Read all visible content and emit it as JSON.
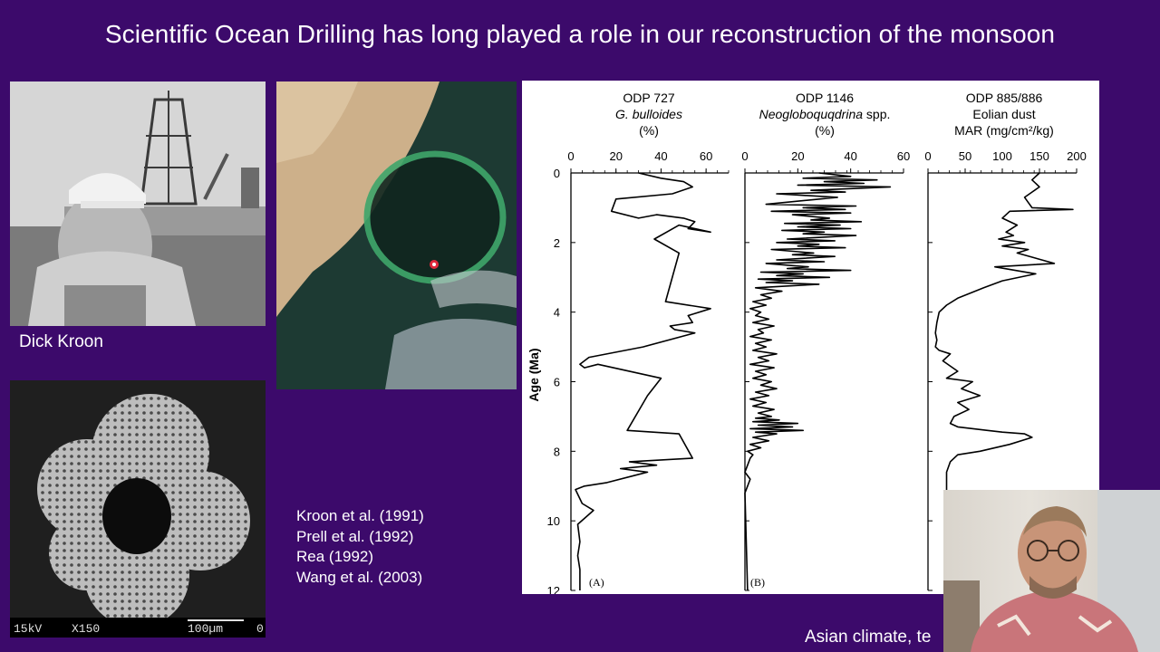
{
  "slide": {
    "title": "Scientific Ocean Drilling has long played a role in our reconstruction of the monsoon",
    "photo_caption": "Dick Kroon",
    "references": [
      "Kroon et al. (1991)",
      "Prell et al. (1992)",
      "Rea (1992)",
      "Wang et al. (2003)"
    ],
    "footer": "Asian climate, te",
    "sem_labels": {
      "voltage": "15kV",
      "magnification": "X150",
      "scale": "100µm",
      "suffix": "0"
    }
  },
  "colors": {
    "background": "#3c0a6b",
    "text": "#ffffff",
    "site_marker": "#e0283c"
  },
  "icons": [
    "drill-ship-photo",
    "foraminifera-sem-photo",
    "satellite-map-photo",
    "presenter-webcam"
  ],
  "chart_data": [
    {
      "type": "line",
      "panel_label": "(A)",
      "title": "ODP 727",
      "subtitle": "G. bulloides",
      "unit": "(%)",
      "xlim": [
        0,
        70
      ],
      "xticks": [
        "0",
        "20",
        "40",
        "60"
      ],
      "ylabel": "Age (Ma)",
      "ylim": [
        0,
        12
      ],
      "yticks": [
        "0",
        "2",
        "4",
        "6",
        "8",
        "10",
        "12"
      ],
      "x": [
        30,
        40,
        50,
        54,
        45,
        20,
        18,
        30,
        38,
        50,
        55,
        52,
        62,
        48,
        37,
        48,
        42,
        62,
        52,
        54,
        44,
        46,
        55,
        32,
        8,
        4,
        6,
        12,
        40,
        34,
        25,
        48,
        54,
        26,
        38,
        22,
        34,
        28,
        16,
        6,
        2,
        5,
        10,
        3,
        4,
        3,
        4,
        4,
        4
      ],
      "y": [
        0.0,
        0.15,
        0.25,
        0.4,
        0.6,
        0.75,
        1.1,
        1.3,
        1.2,
        1.3,
        1.4,
        1.6,
        1.7,
        1.5,
        1.9,
        2.3,
        3.7,
        3.9,
        4.1,
        4.3,
        4.4,
        4.5,
        4.6,
        5.0,
        5.3,
        5.5,
        5.6,
        5.5,
        5.9,
        6.4,
        7.4,
        7.5,
        8.2,
        8.3,
        8.4,
        8.5,
        8.6,
        8.7,
        8.9,
        9.0,
        9.1,
        9.5,
        9.7,
        10.1,
        10.6,
        11.0,
        11.4,
        11.8,
        12.0
      ]
    },
    {
      "type": "line",
      "panel_label": "(B)",
      "title": "ODP 1146",
      "subtitle": "Neogloboquqdrina",
      "subtitle_suffix": "spp.",
      "unit": "(%)",
      "xlim": [
        0,
        60
      ],
      "xticks": [
        "0",
        "20",
        "40",
        "60"
      ],
      "ylim": [
        0,
        12
      ],
      "x": [
        28,
        40,
        22,
        50,
        30,
        45,
        20,
        55,
        25,
        38,
        12,
        35,
        8,
        42,
        22,
        38,
        10,
        40,
        18,
        32,
        25,
        44,
        15,
        36,
        20,
        40,
        14,
        30,
        22,
        42,
        16,
        34,
        12,
        28,
        20,
        38,
        10,
        26,
        18,
        34,
        12,
        30,
        8,
        24,
        16,
        40,
        6,
        22,
        12,
        32,
        5,
        18,
        8,
        28,
        4,
        14,
        6,
        10,
        3,
        8,
        2,
        6,
        4,
        9,
        3,
        11,
        5,
        7,
        2,
        10,
        4,
        8,
        3,
        12,
        5,
        9,
        2,
        11,
        4,
        8,
        3,
        10,
        6,
        12,
        4,
        9,
        2,
        8,
        3,
        11,
        5,
        10,
        4,
        13,
        3,
        20,
        5,
        18,
        2,
        22,
        4,
        12,
        3,
        9,
        2,
        6,
        1,
        3,
        2,
        1,
        0,
        2,
        1,
        0,
        1
      ],
      "y": [
        0.0,
        0.1,
        0.15,
        0.2,
        0.25,
        0.3,
        0.35,
        0.4,
        0.5,
        0.55,
        0.6,
        0.7,
        0.9,
        0.95,
        1.0,
        1.05,
        1.1,
        1.15,
        1.2,
        1.3,
        1.35,
        1.4,
        1.45,
        1.5,
        1.55,
        1.6,
        1.65,
        1.7,
        1.75,
        1.8,
        1.9,
        1.95,
        2.0,
        2.05,
        2.1,
        2.15,
        2.2,
        2.3,
        2.35,
        2.4,
        2.5,
        2.55,
        2.6,
        2.7,
        2.75,
        2.8,
        2.85,
        2.9,
        2.95,
        3.0,
        3.05,
        3.1,
        3.15,
        3.2,
        3.3,
        3.4,
        3.5,
        3.6,
        3.7,
        3.8,
        3.9,
        4.0,
        4.1,
        4.2,
        4.3,
        4.4,
        4.5,
        4.6,
        4.7,
        4.8,
        4.9,
        5.0,
        5.1,
        5.2,
        5.3,
        5.4,
        5.5,
        5.6,
        5.7,
        5.8,
        5.9,
        6.0,
        6.1,
        6.2,
        6.3,
        6.4,
        6.5,
        6.6,
        6.7,
        6.8,
        6.9,
        7.0,
        7.05,
        7.1,
        7.15,
        7.2,
        7.25,
        7.3,
        7.35,
        7.4,
        7.45,
        7.5,
        7.6,
        7.7,
        7.8,
        7.9,
        8.0,
        8.1,
        8.2,
        8.4,
        8.6,
        8.8,
        9.0,
        9.2,
        12.0
      ]
    },
    {
      "type": "line",
      "title": "ODP 885/886",
      "subtitle": "Eolian dust",
      "unit": "MAR (mg/cm²/kg)",
      "xlim": [
        0,
        200
      ],
      "xticks": [
        "0",
        "50",
        "100",
        "150",
        "200"
      ],
      "ylim": [
        0,
        12
      ],
      "x": [
        150,
        140,
        150,
        140,
        130,
        135,
        140,
        195,
        110,
        100,
        120,
        105,
        115,
        95,
        130,
        100,
        135,
        120,
        170,
        90,
        145,
        100,
        75,
        40,
        25,
        15,
        12,
        10,
        12,
        10,
        15,
        30,
        20,
        40,
        25,
        60,
        45,
        70,
        40,
        55,
        35,
        30,
        40,
        80,
        100,
        130,
        140,
        110,
        70,
        40,
        30,
        25,
        25,
        25,
        25
      ],
      "y": [
        0.0,
        0.2,
        0.4,
        0.55,
        0.7,
        0.85,
        1.0,
        1.05,
        1.1,
        1.3,
        1.5,
        1.7,
        1.8,
        1.9,
        2.0,
        2.1,
        2.2,
        2.3,
        2.6,
        2.7,
        2.9,
        3.1,
        3.3,
        3.6,
        3.8,
        4.0,
        4.3,
        4.6,
        4.8,
        5.0,
        5.1,
        5.2,
        5.4,
        5.7,
        5.9,
        6.0,
        6.2,
        6.4,
        6.6,
        6.8,
        7.0,
        7.2,
        7.3,
        7.4,
        7.45,
        7.5,
        7.6,
        7.8,
        8.0,
        8.1,
        8.3,
        8.6,
        9.0,
        9.5,
        12.0
      ]
    }
  ]
}
